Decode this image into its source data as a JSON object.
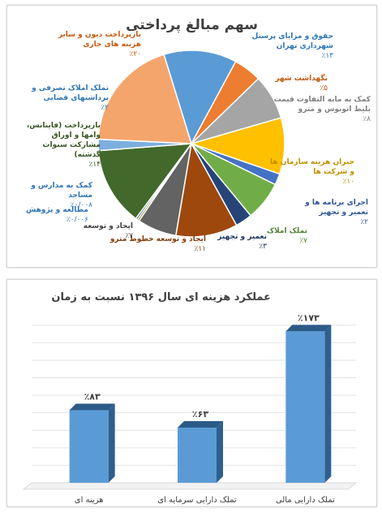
{
  "chart_data": [
    {
      "type": "pie",
      "title": "سهم مبالغ پرداختی",
      "slices": [
        {
          "label": "حقوق و مزایای پرسنل شهرداری تهران",
          "percent_label": "٪۱۳",
          "value": 13,
          "color": "#5b9bd5"
        },
        {
          "label": "نگهداشت شهر",
          "percent_label": "٪۵",
          "value": 5,
          "color": "#ed7d31"
        },
        {
          "label": "کمک به مابه التفاوت قیمت بلیط اتوبوس و مترو",
          "percent_label": "٪۸",
          "value": 8,
          "color": "#a5a5a5"
        },
        {
          "label": "جبران هزینه سازمان ها و شرکت ها",
          "percent_label": "٪۱۰",
          "value": 10,
          "color": "#ffc000"
        },
        {
          "label": "اجرای برنامه ها و تعمیر و تجهیز",
          "percent_label": "٪۲",
          "value": 2,
          "color": "#4472c4"
        },
        {
          "label": "تملک املاک",
          "percent_label": "٪۷",
          "value": 7,
          "color": "#70ad47"
        },
        {
          "label": "تعمیر و تجهیز",
          "percent_label": "٪۳",
          "value": 3,
          "color": "#264478"
        },
        {
          "label": "ایجاد و توسعه خطوط مترو",
          "percent_label": "٪۱۱",
          "value": 11,
          "color": "#9e480e"
        },
        {
          "label": "ایجاد و توسعه",
          "percent_label": "٪۷",
          "value": 7,
          "color": "#636363"
        },
        {
          "label": "مطالعه و پژوهش",
          "percent_label": "٪۰/۰۰۶",
          "value": 0.006,
          "color": "#997300"
        },
        {
          "label": "کمک به مدارس و مساجد",
          "percent_label": "٪۰/۰۰۸",
          "value": 0.008,
          "color": "#255e91"
        },
        {
          "label": "بازپرداخت (فاینانس، وامها و اوراق مشارکت سنوات گذشته)",
          "percent_label": "٪۱۴",
          "value": 14,
          "color": "#43682b"
        },
        {
          "label": "تملک املاک تصرفی و برداشتهای قضایی",
          "percent_label": "٪۲",
          "value": 2,
          "color": "#7cafdd"
        },
        {
          "label": "بازپرداخت دیون و سایر هزینه های جاری",
          "percent_label": "٪۲۰",
          "value": 20,
          "color": "#f4a56c"
        }
      ]
    },
    {
      "type": "bar",
      "title": "عملکرد هزینه ای سال ۱۳۹۶ نسبت به زمان",
      "categories": [
        "هزینه ای",
        "تملک دارایی سرمایه ای",
        "تملک دارایی مالی"
      ],
      "values": [
        83,
        63,
        173
      ],
      "value_labels": [
        "٪۸۳",
        "٪۶۳",
        "٪۱۷۳"
      ],
      "ylim": [
        0,
        190
      ],
      "grid": true,
      "color": "#5b9bd5"
    }
  ]
}
